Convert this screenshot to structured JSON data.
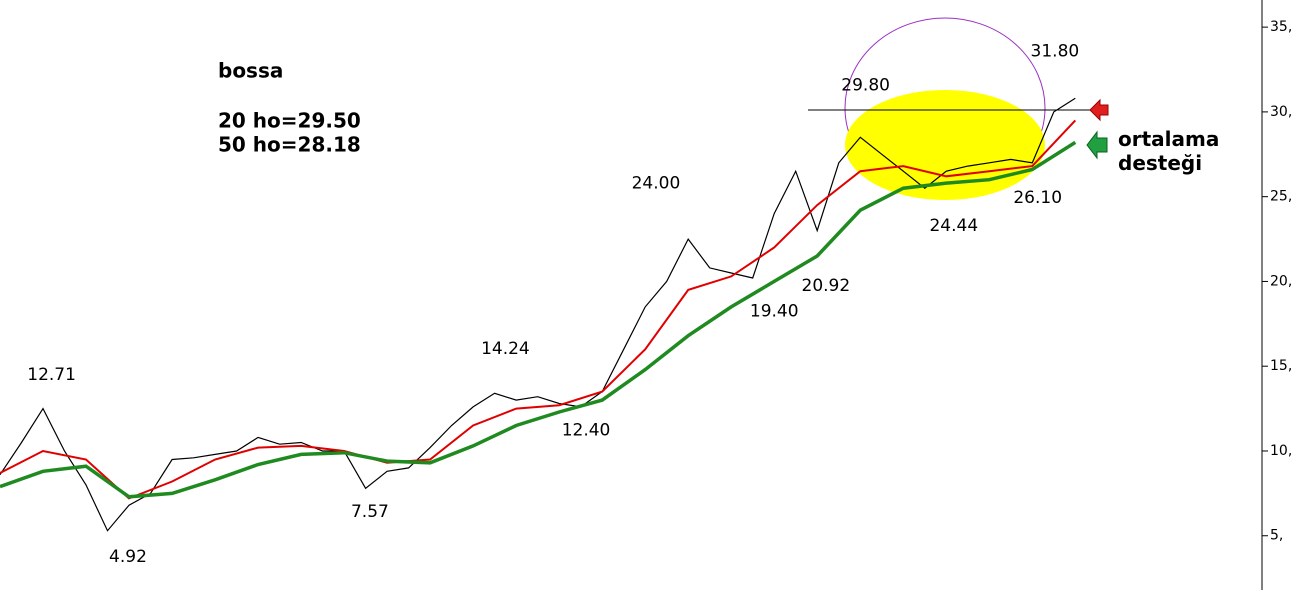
{
  "chart_data": {
    "type": "line",
    "title": "bossa",
    "subtitle": [
      "20 ho=29.50",
      "50 ho=28.18"
    ],
    "note": "ortalama desteği",
    "xlim": [
      0,
      100.9
    ],
    "ylim": [
      1.8,
      36.6
    ],
    "yticks": [
      {
        "value": 35,
        "label": "35,"
      },
      {
        "value": 30,
        "label": "30,"
      },
      {
        "value": 25,
        "label": "25,"
      },
      {
        "value": 20,
        "label": "20,"
      },
      {
        "value": 15,
        "label": "15,"
      },
      {
        "value": 10,
        "label": "10,"
      },
      {
        "value": 5,
        "label": "5,"
      }
    ],
    "series": [
      {
        "color": "#000000",
        "x": [
          0,
          2,
          4,
          6,
          8,
          10,
          12,
          14,
          16,
          18,
          20,
          22,
          24,
          26,
          28,
          30,
          32,
          34,
          36,
          38,
          40,
          42,
          44,
          46,
          48,
          50,
          52,
          54,
          56,
          58,
          60,
          62,
          64,
          66,
          68,
          70,
          72,
          74,
          76,
          78,
          80,
          82,
          84,
          86,
          88,
          90,
          92,
          94,
          96,
          98,
          100
        ],
        "values": [
          8.6,
          10.5,
          12.5,
          10,
          8,
          5.3,
          6.8,
          7.5,
          9.5,
          9.6,
          9.8,
          10,
          10.8,
          10.4,
          10.5,
          10,
          10,
          7.8,
          8.8,
          9,
          10.2,
          11.5,
          12.6,
          13.4,
          13,
          13.2,
          12.8,
          12.6,
          13.5,
          16,
          18.5,
          20,
          22.5,
          20.8,
          20.5,
          20.2,
          24,
          26.5,
          23,
          27,
          28.5,
          27.5,
          26.5,
          25.5,
          26.5,
          26.8,
          27,
          27.2,
          27,
          30,
          30.8
        ]
      },
      {
        "color": "#e00000",
        "x": [
          0,
          4,
          8,
          12,
          16,
          20,
          24,
          28,
          32,
          36,
          40,
          44,
          48,
          52,
          56,
          60,
          64,
          68,
          72,
          76,
          80,
          84,
          88,
          92,
          96,
          100
        ],
        "values": [
          8.7,
          10,
          9.5,
          7.2,
          8.2,
          9.5,
          10.2,
          10.3,
          10,
          9.3,
          9.5,
          11.5,
          12.5,
          12.7,
          13.5,
          16,
          19.5,
          20.3,
          22,
          24.5,
          26.5,
          26.8,
          26.2,
          26.5,
          26.8,
          29.5
        ]
      },
      {
        "color": "#1f8a1f",
        "x": [
          0,
          4,
          8,
          12,
          16,
          20,
          24,
          28,
          32,
          36,
          40,
          44,
          48,
          52,
          56,
          60,
          64,
          68,
          72,
          76,
          80,
          84,
          88,
          92,
          96,
          100
        ],
        "values": [
          7.9,
          8.8,
          9.1,
          7.3,
          7.5,
          8.3,
          9.2,
          9.8,
          9.9,
          9.4,
          9.3,
          10.3,
          11.5,
          12.3,
          13,
          14.8,
          16.8,
          18.5,
          20,
          21.5,
          24.2,
          25.5,
          25.8,
          26,
          26.6,
          28.2
        ]
      }
    ],
    "annotations": [
      {
        "x": 4.8,
        "value": 12.71,
        "label": "12.71",
        "position": "above"
      },
      {
        "x": 11.9,
        "value": 4.92,
        "label": "4.92",
        "position": "below"
      },
      {
        "x": 34.4,
        "value": 7.57,
        "label": "7.57",
        "position": "below"
      },
      {
        "x": 47,
        "value": 14.24,
        "label": "14.24",
        "position": "above"
      },
      {
        "x": 54.5,
        "value": 12.4,
        "label": "12.40",
        "position": "below"
      },
      {
        "x": 61,
        "value": 24,
        "label": "24.00",
        "position": "above"
      },
      {
        "x": 72,
        "value": 19.4,
        "label": "19.40",
        "position": "below"
      },
      {
        "x": 76.8,
        "value": 20.92,
        "label": "20.92",
        "position": "below"
      },
      {
        "x": 80.5,
        "value": 29.8,
        "label": "29.80",
        "position": "above"
      },
      {
        "x": 98.1,
        "value": 31.8,
        "label": "31.80",
        "position": "above"
      },
      {
        "x": 88.7,
        "value": 24.44,
        "label": "24.44",
        "position": "below"
      },
      {
        "x": 96.5,
        "value": 26.1,
        "label": "26.10",
        "position": "below"
      }
    ]
  }
}
